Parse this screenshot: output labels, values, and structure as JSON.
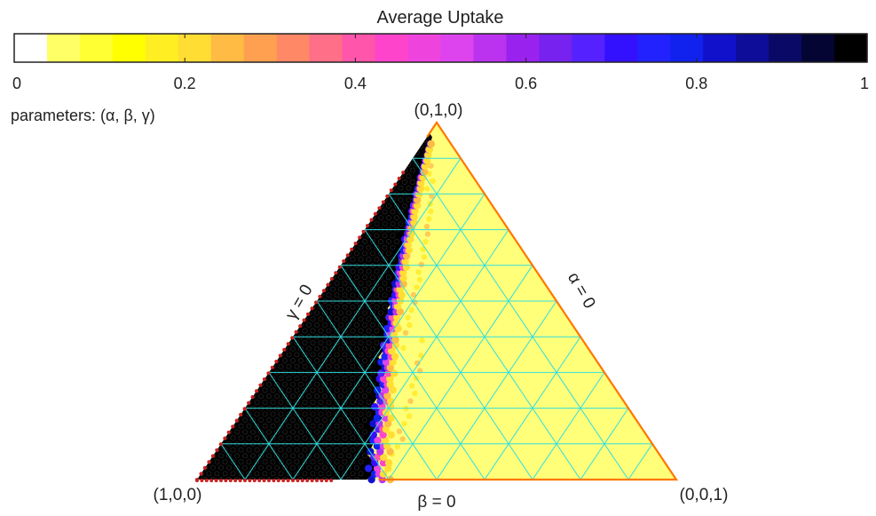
{
  "chart_data": {
    "type": "heatmap",
    "subtype": "ternary",
    "colorbar": {
      "title": "Average Uptake",
      "min": 0,
      "max": 1,
      "ticks": [
        {
          "value": 0,
          "label": "0"
        },
        {
          "value": 0.2,
          "label": "0.2"
        },
        {
          "value": 0.4,
          "label": "0.4"
        },
        {
          "value": 0.6,
          "label": "0.6"
        },
        {
          "value": 0.8,
          "label": "0.8"
        },
        {
          "value": 1,
          "label": "1"
        }
      ],
      "colors": [
        "#ffffff",
        "#ffff66",
        "#ffff33",
        "#ffff00",
        "#ffee22",
        "#ffdd33",
        "#ffbb44",
        "#ffa050",
        "#ff8866",
        "#ff6f88",
        "#ff55aa",
        "#ff44cc",
        "#ee44dd",
        "#dd44ee",
        "#bb33ee",
        "#9922ee",
        "#7722ee",
        "#5522ff",
        "#3311ff",
        "#2222ff",
        "#1122ee",
        "#1111cc",
        "#0d0d99",
        "#0a0a66",
        "#050533",
        "#000000"
      ]
    },
    "parameters_label": "parameters: (α, β, γ)",
    "vertices": {
      "top": "(0,1,0)",
      "left": "(1,0,0)",
      "right": "(0,0,1)"
    },
    "edge_labels": {
      "left": "γ = 0",
      "right": "α = 0",
      "bottom": "β = 0"
    },
    "grid_divisions": 10,
    "regions": [
      {
        "description": "high uptake",
        "value": 1.0
      },
      {
        "description": "low uptake",
        "value": 0.05
      }
    ],
    "boundary_gamma": 0.36,
    "colors": {
      "high": "#000000",
      "low": "#ffff7a",
      "grid": "#33dddd",
      "outline": "#ff7700",
      "left_edge_dots": "#cc2222"
    }
  }
}
